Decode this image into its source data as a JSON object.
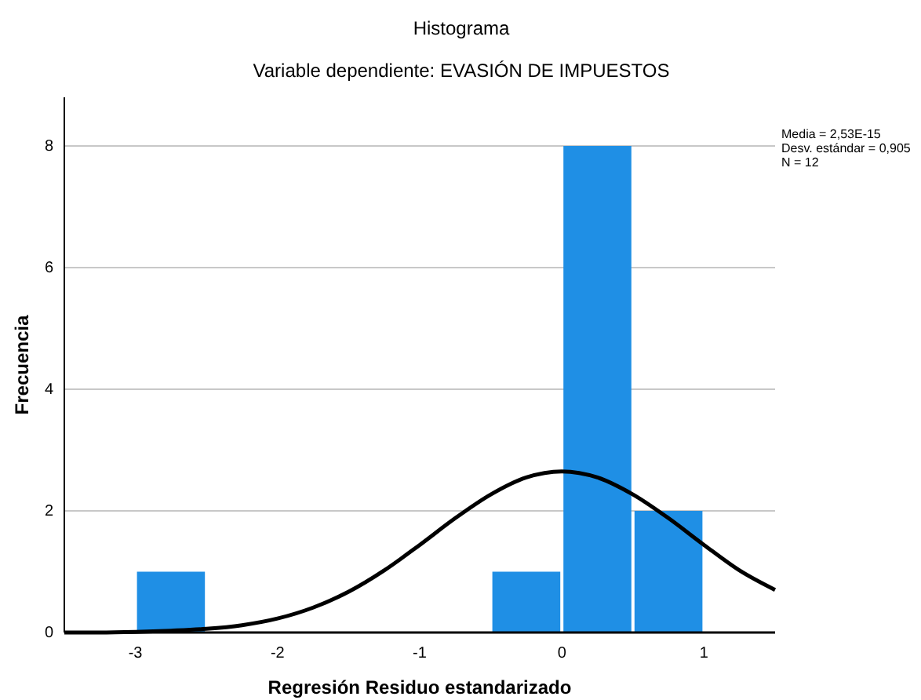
{
  "chart_data": {
    "type": "histogram",
    "title": "Histograma",
    "subtitle": "Variable dependiente: EVASIÓN DE IMPUESTOS",
    "xlabel": "Regresión Residuo estandarizado",
    "ylabel": "Frecuencia",
    "bins": [
      -3,
      -2.5,
      -2,
      -1.5,
      -1,
      -0.5,
      0,
      0.5,
      1
    ],
    "values": [
      1,
      0,
      0,
      0,
      0,
      1,
      8,
      2
    ],
    "color": "#1f8fe5",
    "series": [
      {
        "type": "line",
        "color": "#000000",
        "x": [
          -3.5,
          -3.25,
          -3,
          -2.75,
          -2.5,
          -2.25,
          -2,
          -1.75,
          -1.5,
          -1.25,
          -1,
          -0.75,
          -0.5,
          -0.25,
          0,
          0.25,
          0.5,
          0.75,
          1,
          1.25,
          1.5
        ],
        "values": [
          0.0,
          0.0,
          0.01,
          0.03,
          0.06,
          0.12,
          0.23,
          0.41,
          0.67,
          1.02,
          1.44,
          1.88,
          2.27,
          2.55,
          2.65,
          2.55,
          2.27,
          1.88,
          1.44,
          1.02,
          0.7
        ]
      }
    ],
    "xlim": [
      -3.5,
      1.5
    ],
    "xticks": [
      -3,
      -2,
      -1,
      0,
      1
    ],
    "ylim": [
      0,
      8.8
    ],
    "yticks": [
      0,
      2,
      4,
      6,
      8
    ],
    "grid": "y",
    "line_style": "solid",
    "marker": "none",
    "annotations": [
      "Media = 2,53E-15",
      "Desv. estándar = 0,905",
      "N = 12"
    ]
  }
}
